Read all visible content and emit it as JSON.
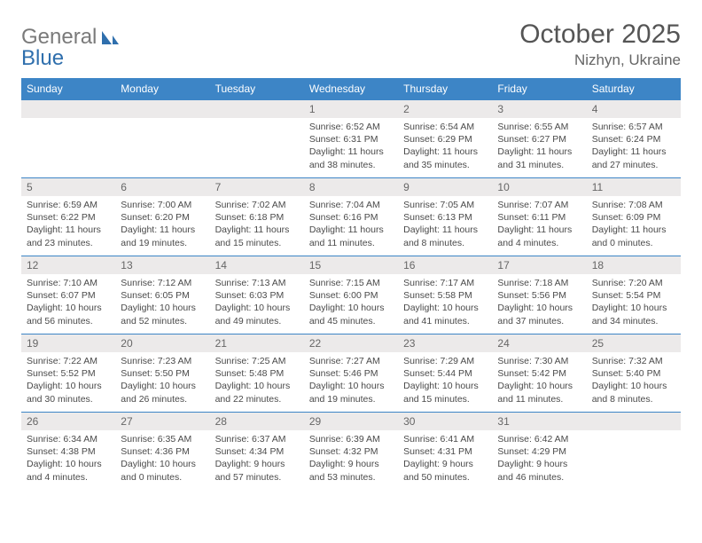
{
  "logo": {
    "word1": "General",
    "word2": "Blue"
  },
  "header": {
    "title": "October 2025",
    "location": "Nizhyn, Ukraine"
  },
  "colors": {
    "header_bg": "#3d85c6",
    "header_text": "#ffffff",
    "daynum_bg": "#eceaea",
    "border": "#3d85c6",
    "body_text": "#4a4a4a",
    "logo_gray": "#7a7a7a",
    "logo_blue": "#2f6fad"
  },
  "typography": {
    "title_fontsize": 30,
    "location_fontsize": 17,
    "weekday_fontsize": 12,
    "daynum_fontsize": 12,
    "cell_fontsize": 10.5
  },
  "layout": {
    "columns": 7,
    "rows": 5,
    "first_weekday_index": 3
  },
  "weekdays": [
    "Sunday",
    "Monday",
    "Tuesday",
    "Wednesday",
    "Thursday",
    "Friday",
    "Saturday"
  ],
  "days": [
    {
      "n": "1",
      "sunrise": "6:52 AM",
      "sunset": "6:31 PM",
      "dl": "11 hours and 38 minutes."
    },
    {
      "n": "2",
      "sunrise": "6:54 AM",
      "sunset": "6:29 PM",
      "dl": "11 hours and 35 minutes."
    },
    {
      "n": "3",
      "sunrise": "6:55 AM",
      "sunset": "6:27 PM",
      "dl": "11 hours and 31 minutes."
    },
    {
      "n": "4",
      "sunrise": "6:57 AM",
      "sunset": "6:24 PM",
      "dl": "11 hours and 27 minutes."
    },
    {
      "n": "5",
      "sunrise": "6:59 AM",
      "sunset": "6:22 PM",
      "dl": "11 hours and 23 minutes."
    },
    {
      "n": "6",
      "sunrise": "7:00 AM",
      "sunset": "6:20 PM",
      "dl": "11 hours and 19 minutes."
    },
    {
      "n": "7",
      "sunrise": "7:02 AM",
      "sunset": "6:18 PM",
      "dl": "11 hours and 15 minutes."
    },
    {
      "n": "8",
      "sunrise": "7:04 AM",
      "sunset": "6:16 PM",
      "dl": "11 hours and 11 minutes."
    },
    {
      "n": "9",
      "sunrise": "7:05 AM",
      "sunset": "6:13 PM",
      "dl": "11 hours and 8 minutes."
    },
    {
      "n": "10",
      "sunrise": "7:07 AM",
      "sunset": "6:11 PM",
      "dl": "11 hours and 4 minutes."
    },
    {
      "n": "11",
      "sunrise": "7:08 AM",
      "sunset": "6:09 PM",
      "dl": "11 hours and 0 minutes."
    },
    {
      "n": "12",
      "sunrise": "7:10 AM",
      "sunset": "6:07 PM",
      "dl": "10 hours and 56 minutes."
    },
    {
      "n": "13",
      "sunrise": "7:12 AM",
      "sunset": "6:05 PM",
      "dl": "10 hours and 52 minutes."
    },
    {
      "n": "14",
      "sunrise": "7:13 AM",
      "sunset": "6:03 PM",
      "dl": "10 hours and 49 minutes."
    },
    {
      "n": "15",
      "sunrise": "7:15 AM",
      "sunset": "6:00 PM",
      "dl": "10 hours and 45 minutes."
    },
    {
      "n": "16",
      "sunrise": "7:17 AM",
      "sunset": "5:58 PM",
      "dl": "10 hours and 41 minutes."
    },
    {
      "n": "17",
      "sunrise": "7:18 AM",
      "sunset": "5:56 PM",
      "dl": "10 hours and 37 minutes."
    },
    {
      "n": "18",
      "sunrise": "7:20 AM",
      "sunset": "5:54 PM",
      "dl": "10 hours and 34 minutes."
    },
    {
      "n": "19",
      "sunrise": "7:22 AM",
      "sunset": "5:52 PM",
      "dl": "10 hours and 30 minutes."
    },
    {
      "n": "20",
      "sunrise": "7:23 AM",
      "sunset": "5:50 PM",
      "dl": "10 hours and 26 minutes."
    },
    {
      "n": "21",
      "sunrise": "7:25 AM",
      "sunset": "5:48 PM",
      "dl": "10 hours and 22 minutes."
    },
    {
      "n": "22",
      "sunrise": "7:27 AM",
      "sunset": "5:46 PM",
      "dl": "10 hours and 19 minutes."
    },
    {
      "n": "23",
      "sunrise": "7:29 AM",
      "sunset": "5:44 PM",
      "dl": "10 hours and 15 minutes."
    },
    {
      "n": "24",
      "sunrise": "7:30 AM",
      "sunset": "5:42 PM",
      "dl": "10 hours and 11 minutes."
    },
    {
      "n": "25",
      "sunrise": "7:32 AM",
      "sunset": "5:40 PM",
      "dl": "10 hours and 8 minutes."
    },
    {
      "n": "26",
      "sunrise": "6:34 AM",
      "sunset": "4:38 PM",
      "dl": "10 hours and 4 minutes."
    },
    {
      "n": "27",
      "sunrise": "6:35 AM",
      "sunset": "4:36 PM",
      "dl": "10 hours and 0 minutes."
    },
    {
      "n": "28",
      "sunrise": "6:37 AM",
      "sunset": "4:34 PM",
      "dl": "9 hours and 57 minutes."
    },
    {
      "n": "29",
      "sunrise": "6:39 AM",
      "sunset": "4:32 PM",
      "dl": "9 hours and 53 minutes."
    },
    {
      "n": "30",
      "sunrise": "6:41 AM",
      "sunset": "4:31 PM",
      "dl": "9 hours and 50 minutes."
    },
    {
      "n": "31",
      "sunrise": "6:42 AM",
      "sunset": "4:29 PM",
      "dl": "9 hours and 46 minutes."
    }
  ],
  "labels": {
    "sunrise": "Sunrise:",
    "sunset": "Sunset:",
    "daylight": "Daylight:"
  }
}
